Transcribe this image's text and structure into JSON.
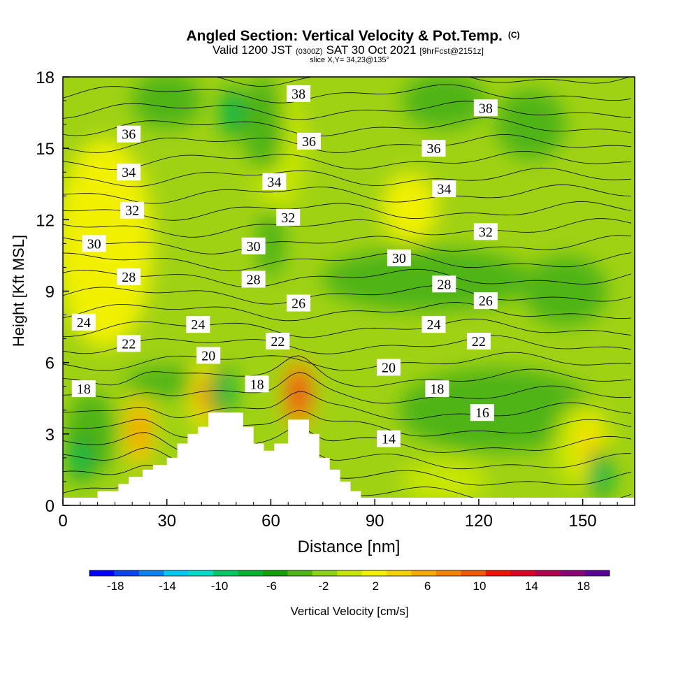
{
  "chart_data": {
    "type": "heatmap",
    "title": "Angled Section: Vertical Velocity & Pot.Temp.",
    "title_mark": "(C)",
    "subtitle": {
      "prefix": "Valid 1200 JST",
      "zulu": "(0300Z)",
      "date": "SAT 30 Oct 2021",
      "fcst": "[9hrFcst@2151z]"
    },
    "slice_info": "slice X,Y= 34,23@135°",
    "xlabel": "Distance [nm]",
    "ylabel": "Height [Kft MSL]",
    "xlim": [
      0,
      165
    ],
    "ylim": [
      0,
      18
    ],
    "xticks": [
      "0",
      "30",
      "60",
      "90",
      "120",
      "150"
    ],
    "yticks": [
      "0",
      "3",
      "6",
      "9",
      "12",
      "15",
      "18"
    ],
    "colorbar": {
      "label": "Vertical Velocity [cm/s]",
      "tick_labels": [
        "-18",
        "-14",
        "-10",
        "-6",
        "-2",
        "2",
        "6",
        "10",
        "14",
        "18"
      ],
      "range": [
        -20,
        20
      ],
      "step": 2,
      "colors": [
        "#0000ff",
        "#0a46f0",
        "#0a82f0",
        "#00c8f0",
        "#00dcc8",
        "#00c864",
        "#00b432",
        "#14a000",
        "#50b414",
        "#8cd214",
        "#c8e600",
        "#f0f000",
        "#f5d200",
        "#f5aa00",
        "#f58200",
        "#f05a00",
        "#f01400",
        "#dc0028",
        "#b40050",
        "#8c0078",
        "#5a0096"
      ]
    },
    "grid": false,
    "terrain": [
      [
        0,
        0.3
      ],
      [
        10,
        0.3
      ],
      [
        10,
        0.6
      ],
      [
        16,
        0.6
      ],
      [
        16,
        0.9
      ],
      [
        19,
        0.9
      ],
      [
        19,
        1.2
      ],
      [
        23,
        1.2
      ],
      [
        23,
        1.5
      ],
      [
        26,
        1.5
      ],
      [
        26,
        1.7
      ],
      [
        30,
        1.7
      ],
      [
        30,
        2.0
      ],
      [
        33,
        2.0
      ],
      [
        33,
        2.6
      ],
      [
        36,
        2.6
      ],
      [
        36,
        3.0
      ],
      [
        39,
        3.0
      ],
      [
        39,
        3.3
      ],
      [
        42,
        3.3
      ],
      [
        42,
        3.9
      ],
      [
        52,
        3.9
      ],
      [
        52,
        3.3
      ],
      [
        55,
        3.3
      ],
      [
        55,
        2.6
      ],
      [
        58,
        2.6
      ],
      [
        58,
        2.3
      ],
      [
        61,
        2.3
      ],
      [
        61,
        2.6
      ],
      [
        65,
        2.6
      ],
      [
        65,
        3.6
      ],
      [
        71,
        3.6
      ],
      [
        71,
        3.0
      ],
      [
        74,
        3.0
      ],
      [
        74,
        2.0
      ],
      [
        77,
        2.0
      ],
      [
        77,
        1.5
      ],
      [
        80,
        1.5
      ],
      [
        80,
        1.0
      ],
      [
        83,
        1.0
      ],
      [
        83,
        0.6
      ],
      [
        86,
        0.6
      ],
      [
        86,
        0.3
      ],
      [
        165,
        0.3
      ]
    ],
    "updrafts": [
      {
        "x": 22,
        "y": 3.1,
        "w": 9
      },
      {
        "x": 41,
        "y": 4.6,
        "w": 8
      },
      {
        "x": 68,
        "y": 4.7,
        "w": 15
      },
      {
        "x": 152,
        "y": 2.4,
        "w": 5
      }
    ],
    "downdrafts": [
      {
        "x": 5,
        "y": 2.0,
        "w": -10
      },
      {
        "x": 46,
        "y": 4.8,
        "w": -10
      },
      {
        "x": 49,
        "y": 16.5,
        "w": -10
      },
      {
        "x": 155,
        "y": 1.3,
        "w": -10
      }
    ],
    "theta_labels": [
      {
        "text": "38",
        "x": 68,
        "y": 17.3
      },
      {
        "text": "38",
        "x": 122,
        "y": 16.7
      },
      {
        "text": "36",
        "x": 19,
        "y": 15.6
      },
      {
        "text": "36",
        "x": 71,
        "y": 15.3
      },
      {
        "text": "36",
        "x": 107,
        "y": 15.0
      },
      {
        "text": "34",
        "x": 19,
        "y": 14.0
      },
      {
        "text": "34",
        "x": 61,
        "y": 13.6
      },
      {
        "text": "34",
        "x": 110,
        "y": 13.3
      },
      {
        "text": "32",
        "x": 20,
        "y": 12.4
      },
      {
        "text": "32",
        "x": 65,
        "y": 12.1
      },
      {
        "text": "32",
        "x": 122,
        "y": 11.5
      },
      {
        "text": "30",
        "x": 9,
        "y": 11.0
      },
      {
        "text": "30",
        "x": 55,
        "y": 10.9
      },
      {
        "text": "30",
        "x": 97,
        "y": 10.4
      },
      {
        "text": "28",
        "x": 19,
        "y": 9.6
      },
      {
        "text": "28",
        "x": 55,
        "y": 9.5
      },
      {
        "text": "28",
        "x": 110,
        "y": 9.3
      },
      {
        "text": "26",
        "x": 68,
        "y": 8.5
      },
      {
        "text": "26",
        "x": 122,
        "y": 8.6
      },
      {
        "text": "24",
        "x": 6,
        "y": 7.7
      },
      {
        "text": "24",
        "x": 39,
        "y": 7.6
      },
      {
        "text": "24",
        "x": 107,
        "y": 7.6
      },
      {
        "text": "22",
        "x": 19,
        "y": 6.8
      },
      {
        "text": "22",
        "x": 62,
        "y": 6.9
      },
      {
        "text": "22",
        "x": 120,
        "y": 6.9
      },
      {
        "text": "20",
        "x": 42,
        "y": 6.3
      },
      {
        "text": "20",
        "x": 94,
        "y": 5.8
      },
      {
        "text": "18",
        "x": 6,
        "y": 4.9
      },
      {
        "text": "18",
        "x": 56,
        "y": 5.1
      },
      {
        "text": "18",
        "x": 108,
        "y": 4.9
      },
      {
        "text": "16",
        "x": 121,
        "y": 3.9
      },
      {
        "text": "14",
        "x": 94,
        "y": 2.8
      }
    ]
  }
}
